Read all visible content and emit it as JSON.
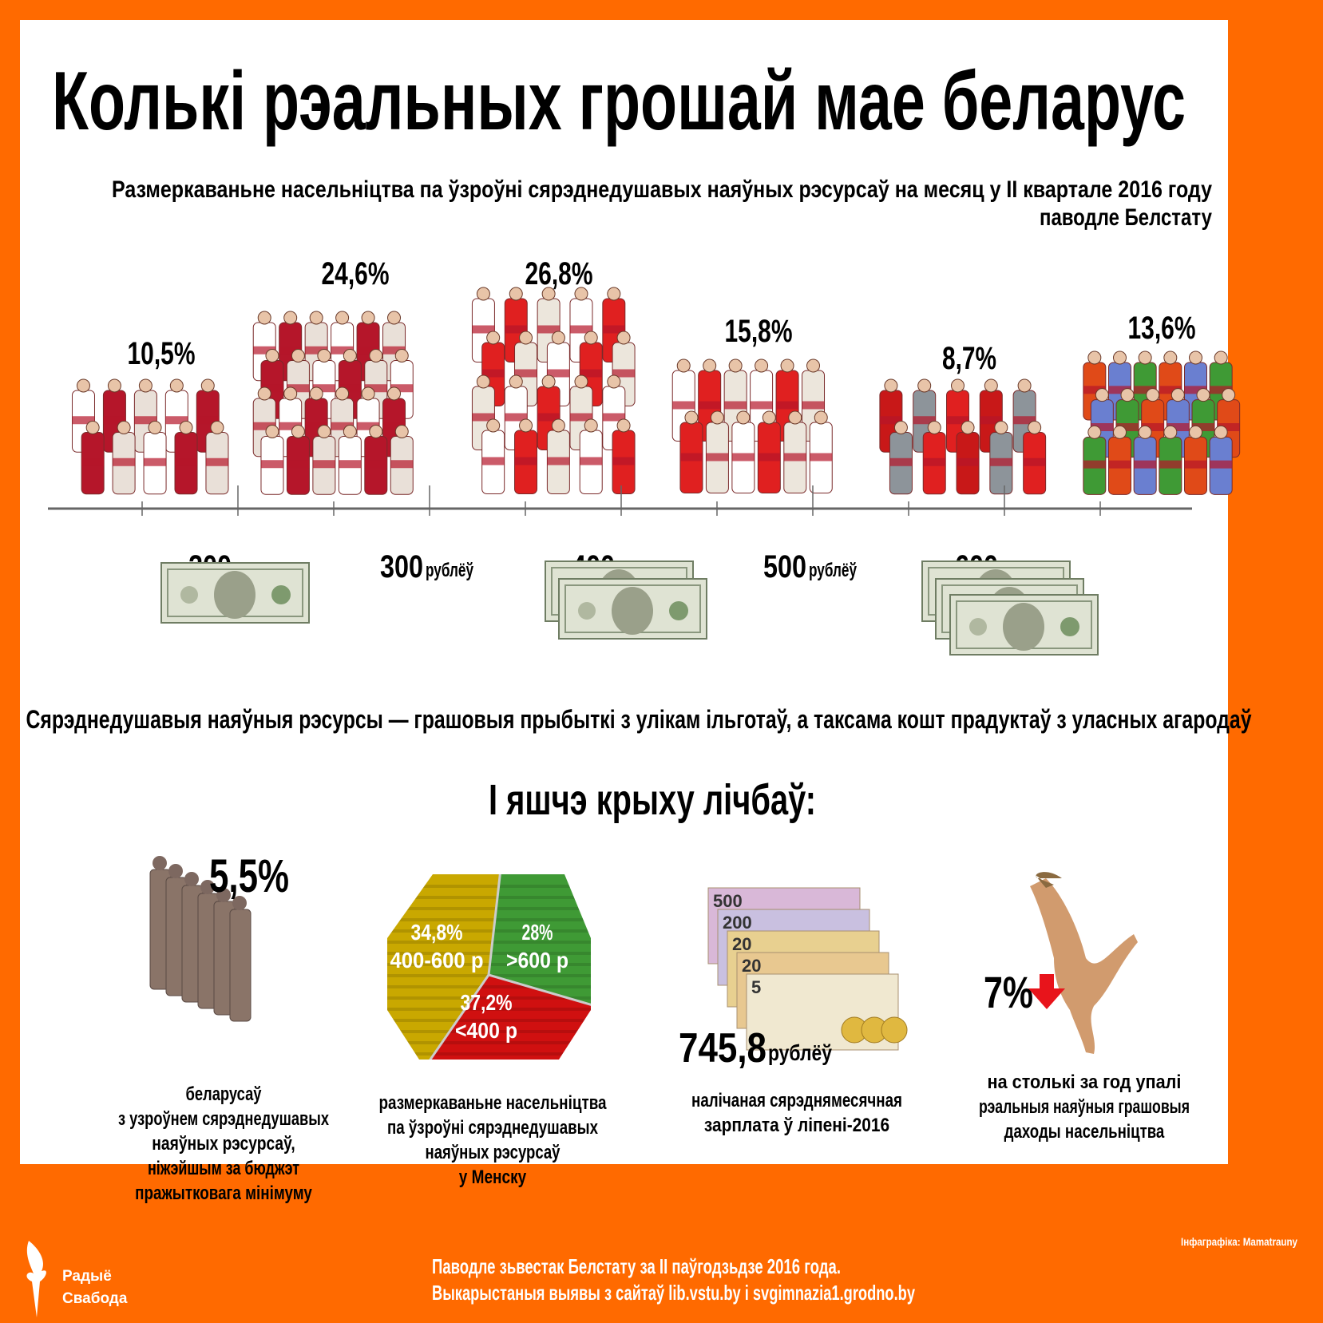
{
  "title": "Колькі рэальных грошай мае беларус",
  "subtitle_line1": "Размеркаваньне насельніцтва па ўзроўні сярэднедушавых наяўных рэсурсаў на месяц у ІІ квартале 2016 году",
  "subtitle_line2": "паводле Белстату",
  "currency_unit": "рублёў",
  "definition": "Сярэднедушавыя наяўныя рэсурсы — грашовыя прыбыткі з улікам ільготаў, а таксама кошт прадуктаў з уласных агародаў",
  "colors": {
    "accent": "#ff6a00",
    "pie_yellow": "#c9a800",
    "pie_green": "#3f9a35",
    "pie_red": "#d01010",
    "arrow": "#e8141b"
  },
  "chart_data": [
    {
      "type": "bar",
      "title": "Размеркаваньне насельніцтва па ўзроўні сярэднедушавых наяўных рэсурсаў на месяц у ІІ квартале 2016 году",
      "tick_labels": [
        "200",
        "300",
        "400",
        "500",
        "600"
      ],
      "unit": "рублёў",
      "categories": [
        "<200",
        "200-300",
        "300-400",
        "400-500",
        "500-600",
        ">600"
      ],
      "values": [
        10.5,
        24.6,
        26.8,
        15.8,
        8.7,
        13.6
      ],
      "value_labels": [
        "10,5%",
        "24,6%",
        "26,8%",
        "15,8%",
        "8,7%",
        "13,6%"
      ]
    },
    {
      "type": "pie",
      "slices": [
        {
          "label": "400-600 р",
          "value": 34.8,
          "value_label": "34,8%",
          "color": "#c9a800"
        },
        {
          "label": ">600 р",
          "value": 28,
          "value_label": "28%",
          "color": "#3f9a35"
        },
        {
          "label": "<400 р",
          "value": 37.2,
          "value_label": "37,2%",
          "color": "#d01010"
        }
      ]
    }
  ],
  "section2": {
    "heading": "І яшчэ крыху лічбаў:",
    "poverty": {
      "value": "5,5%",
      "caption": [
        "беларусаў",
        "з узроўнем сярэднедушавых",
        "наяўных рэсурсаў,",
        "ніжэйшым за бюджэт",
        "пражытковага мінімуму"
      ]
    },
    "minsk": {
      "caption": [
        "размеркаваньне насельніцтва",
        "па ўзроўні сярэднедушавых",
        "наяўных рэсурсаў",
        "у Менску"
      ]
    },
    "salary": {
      "value": "745,8",
      "unit": "рублёў",
      "caption": [
        "налічаная сярэднямесячная",
        "зарплата ў ліпені-2016"
      ],
      "notes": [
        "500",
        "200",
        "20",
        "20",
        "5"
      ]
    },
    "income": {
      "value": "7%",
      "caption": [
        "на столькі за год упалі",
        "рэальныя наяўныя грашовыя",
        "даходы насельніцтва"
      ],
      "icon": "arrow-down-icon"
    }
  },
  "footer": {
    "credit": "Інфаграфіка: Mamatrauny",
    "source_line1": "Паводле зьвестак Белстату за ІІ паўгодзьдзе 2016 года.",
    "source_line2": "Выкарыстаныя выявы з сайтаў lib.vstu.by і svgimnazia1.grodno.by",
    "logo": [
      "Радыё",
      "Свабода"
    ]
  }
}
